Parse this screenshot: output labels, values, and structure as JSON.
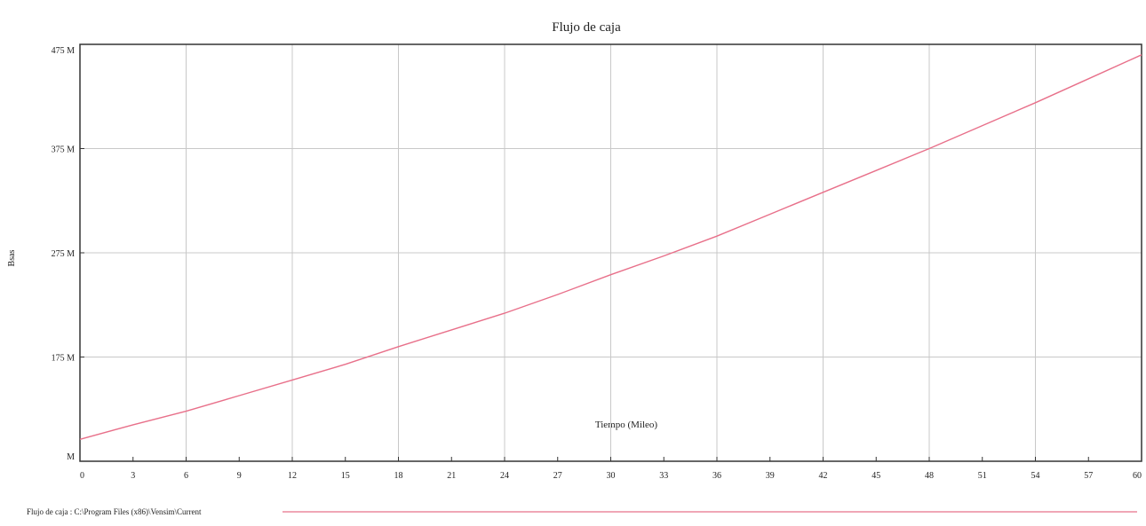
{
  "chart_data": {
    "type": "line",
    "title": "Flujo de caja",
    "xlabel": "Tiempo (Mileo)",
    "ylabel": "Bsas",
    "x_ticks": [
      "0",
      "3",
      "6",
      "9",
      "12",
      "15",
      "18",
      "21",
      "24",
      "27",
      "30",
      "33",
      "36",
      "39",
      "42",
      "45",
      "48",
      "51",
      "54",
      "57",
      "60"
    ],
    "xlim": [
      0,
      60
    ],
    "y_ticks": [
      {
        "value": 75,
        "label": "M"
      },
      {
        "value": 175,
        "label": "175 M"
      },
      {
        "value": 275,
        "label": "275 M"
      },
      {
        "value": 375,
        "label": "375 M"
      },
      {
        "value": 475,
        "label": "475 M"
      }
    ],
    "ylim": [
      75,
      475
    ],
    "grid": true,
    "series": [
      {
        "name": "Flujo de caja",
        "color": "#e8708a",
        "x": [
          0,
          3,
          6,
          9,
          12,
          15,
          18,
          21,
          24,
          27,
          30,
          33,
          36,
          39,
          42,
          45,
          48,
          51,
          54,
          57,
          60
        ],
        "y": [
          96,
          110,
          123,
          138,
          153,
          168,
          185,
          201,
          217,
          235,
          254,
          272,
          291,
          312,
          333,
          354,
          375,
          397,
          419,
          442,
          465
        ]
      }
    ],
    "legend": {
      "label": "Flujo de caja : C:\\Program Files (x86)\\Vensim\\Current",
      "position": "bottom"
    }
  }
}
